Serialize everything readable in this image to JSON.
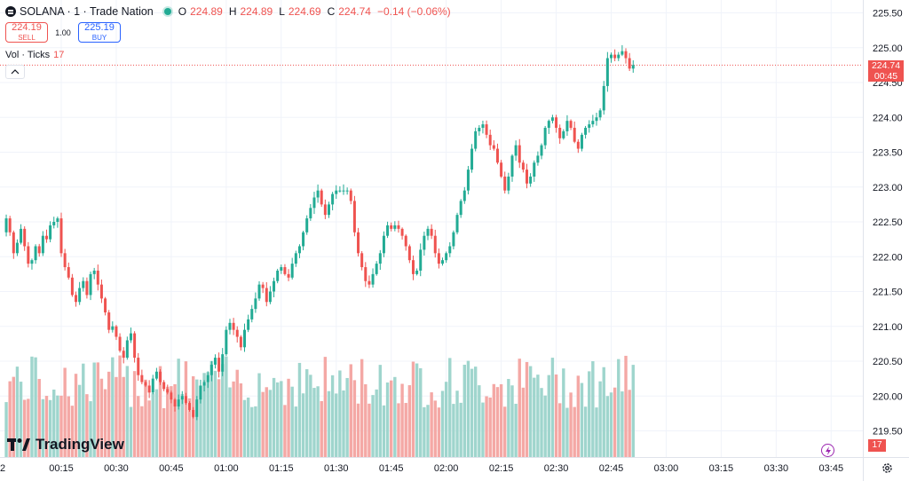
{
  "header": {
    "symbol_title": "SOLANA · 1 · Trade Nation",
    "ohlc": [
      {
        "k": "O",
        "v": "224.89"
      },
      {
        "k": "H",
        "v": "224.89"
      },
      {
        "k": "L",
        "v": "224.69"
      },
      {
        "k": "C",
        "v": "224.74"
      },
      {
        "k": "",
        "v": "−0.14 (−0.06%)"
      }
    ]
  },
  "trade": {
    "sell_price": "224.19",
    "sell_label": "SELL",
    "quantity": "1.00",
    "buy_price": "225.19",
    "buy_label": "BUY"
  },
  "volume_legend": {
    "label": "Vol · Ticks",
    "value": "17"
  },
  "last_price": {
    "price": "224.74",
    "countdown": "00:45"
  },
  "volume_tag": "17",
  "branding": "TradingView",
  "icons": {
    "symbol": "solana-symbol-icon",
    "status": "market-open-dot-icon",
    "collapse": "chevron-up-icon",
    "bolt": "lightning-icon",
    "settings": "gear-icon"
  },
  "colors": {
    "up": "#22ab94",
    "down": "#ef5350",
    "up_vol": "#9fd5cd",
    "down_vol": "#f4a8a5"
  },
  "chart_data": {
    "type": "candlestick",
    "interval_minutes": 1,
    "y_ticks": [
      "225.50",
      "225.00",
      "224.50",
      "224.00",
      "223.50",
      "223.00",
      "222.50",
      "222.00",
      "221.50",
      "221.00",
      "220.50",
      "220.00",
      "219.50"
    ],
    "x_ticks": [
      {
        "label": "2",
        "minute": -2
      },
      {
        "label": "00:15",
        "minute": 15
      },
      {
        "label": "00:30",
        "minute": 30
      },
      {
        "label": "00:45",
        "minute": 45
      },
      {
        "label": "01:00",
        "minute": 60
      },
      {
        "label": "01:15",
        "minute": 75
      },
      {
        "label": "01:30",
        "minute": 90
      },
      {
        "label": "01:45",
        "minute": 105
      },
      {
        "label": "02:00",
        "minute": 120
      },
      {
        "label": "02:15",
        "minute": 135
      },
      {
        "label": "02:30",
        "minute": 150
      },
      {
        "label": "02:45",
        "minute": 165
      },
      {
        "label": "03:00",
        "minute": 180
      },
      {
        "label": "03:15",
        "minute": 195
      },
      {
        "label": "03:30",
        "minute": 210
      },
      {
        "label": "03:45",
        "minute": 225
      }
    ],
    "closes": [
      222.55,
      222.35,
      222.05,
      222.2,
      222.4,
      222.15,
      221.9,
      221.95,
      222.15,
      222.05,
      222.3,
      222.25,
      222.45,
      222.5,
      222.55,
      222.05,
      221.85,
      221.7,
      221.45,
      221.35,
      221.55,
      221.65,
      221.45,
      221.75,
      221.8,
      221.6,
      221.4,
      221.2,
      220.95,
      221.0,
      220.85,
      220.65,
      220.55,
      220.8,
      220.9,
      220.55,
      220.3,
      220.2,
      220.15,
      220.05,
      220.25,
      220.35,
      220.2,
      220.1,
      220.05,
      219.95,
      219.85,
      219.95,
      220.0,
      219.9,
      219.8,
      219.7,
      219.95,
      220.15,
      220.2,
      220.3,
      220.45,
      220.55,
      220.35,
      220.6,
      220.95,
      221.05,
      220.95,
      220.85,
      220.7,
      220.95,
      221.1,
      221.25,
      221.4,
      221.6,
      221.55,
      221.35,
      221.5,
      221.65,
      221.8,
      221.85,
      221.75,
      221.7,
      221.9,
      222.05,
      222.15,
      222.35,
      222.55,
      222.7,
      222.85,
      222.95,
      222.75,
      222.6,
      222.75,
      222.9,
      222.95,
      222.95,
      222.95,
      222.95,
      222.8,
      222.35,
      222.05,
      221.85,
      221.65,
      221.6,
      221.75,
      221.9,
      222.05,
      222.3,
      222.45,
      222.4,
      222.45,
      222.4,
      222.3,
      222.15,
      221.95,
      221.75,
      221.8,
      222.1,
      222.3,
      222.4,
      222.3,
      222.05,
      221.9,
      221.95,
      222.05,
      222.15,
      222.35,
      222.6,
      222.8,
      222.95,
      223.25,
      223.55,
      223.8,
      223.85,
      223.9,
      223.75,
      223.6,
      223.55,
      223.35,
      223.15,
      222.95,
      223.15,
      223.45,
      223.6,
      223.35,
      223.25,
      223.05,
      223.15,
      223.35,
      223.45,
      223.6,
      223.85,
      223.95,
      224.0,
      223.85,
      223.7,
      223.8,
      223.95,
      223.85,
      223.65,
      223.55,
      223.75,
      223.85,
      223.9,
      223.95,
      224.0,
      224.1,
      224.45,
      224.85,
      224.9,
      224.85,
      224.9,
      224.95,
      224.85,
      224.7,
      224.75
    ]
  }
}
